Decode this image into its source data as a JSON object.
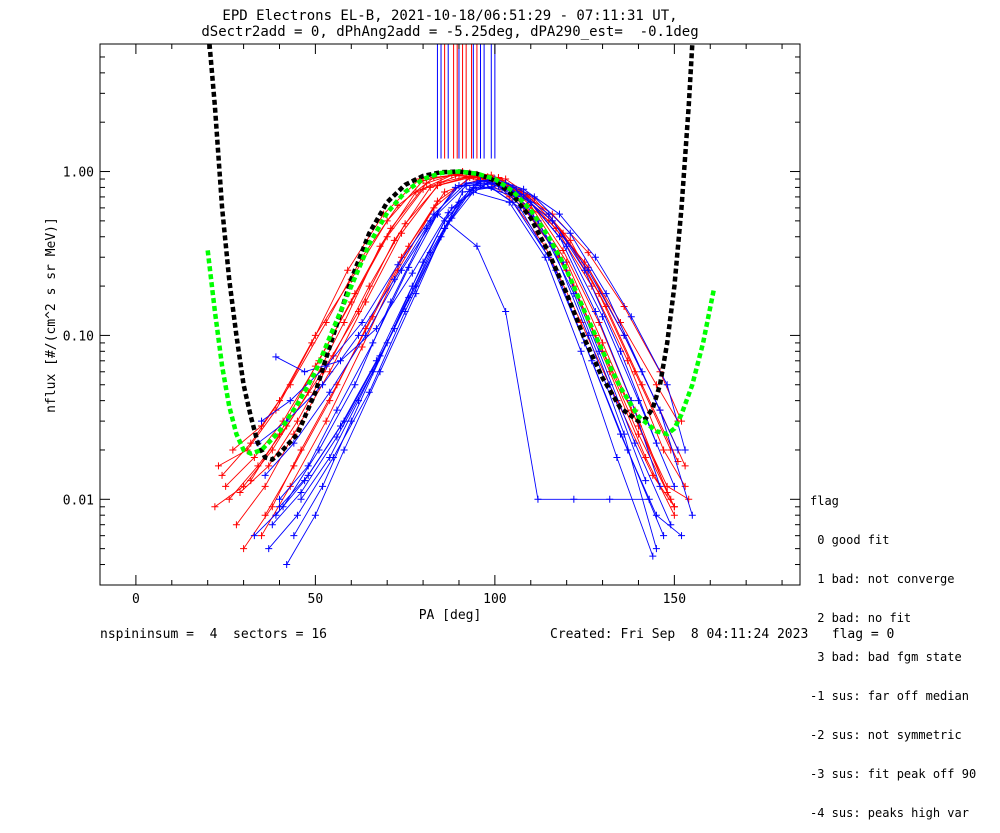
{
  "title_line1": "EPD Electrons EL-B, 2021-10-18/06:51:29 - 07:11:31 UT,",
  "title_line2": "dSectr2add = 0, dPhAng2add = -5.25deg, dPA290_est=  -0.1deg",
  "footer_left": "nspininsum =  4  sectors = 16",
  "footer_right": "Created: Fri Sep  8 04:11:24 2023   flag = 0",
  "legend": {
    "title": "flag",
    "items": [
      " 0 good fit",
      " 1 bad: not converge",
      " 2 bad: no fit",
      " 3 bad: bad fgm state",
      "-1 sus: far off median",
      "-2 sus: not symmetric",
      "-3 sus: fit peak off 90",
      "-4 sus: peaks high var"
    ]
  },
  "chart_data": {
    "type": "scatter",
    "title": "EPD Electrons EL-B, 2021-10-18/06:51:29 - 07:11:31 UT,",
    "subtitle": "dSectr2add = 0, dPhAng2add = -5.25deg, dPA290_est=  -0.1deg",
    "xlabel": "PA [deg]",
    "ylabel": "nflux [#/(cm^2 s sr MeV)]",
    "xlim": [
      -10,
      185
    ],
    "ylim": [
      0.003,
      6.0
    ],
    "yscale": "log",
    "xticks": [
      0,
      50,
      100,
      150
    ],
    "xtick_labels": [
      "0",
      "50",
      "100",
      "150"
    ],
    "yticks": [
      0.01,
      0.1,
      1.0
    ],
    "ytick_labels": [
      "0.01",
      "0.10",
      "1.00"
    ],
    "colors": {
      "red_series": "#ff0000",
      "blue_series": "#0000ff",
      "fit_black": "#000000",
      "fit_green": "#00ff00"
    },
    "series": [
      {
        "color": "#ff0000",
        "style": "line+plus",
        "x": [
          22,
          30,
          38,
          48,
          58,
          68,
          78,
          88,
          96,
          104,
          114,
          124,
          134,
          144,
          150
        ],
        "y": [
          0.009,
          0.012,
          0.02,
          0.045,
          0.12,
          0.35,
          0.75,
          0.95,
          0.92,
          0.7,
          0.35,
          0.12,
          0.04,
          0.014,
          0.009
        ]
      },
      {
        "color": "#ff0000",
        "style": "line+plus",
        "x": [
          25,
          33,
          41,
          51,
          61,
          71,
          81,
          91,
          99,
          107,
          117,
          127,
          137,
          147,
          153
        ],
        "y": [
          0.012,
          0.018,
          0.03,
          0.07,
          0.18,
          0.45,
          0.85,
          1.0,
          0.95,
          0.75,
          0.45,
          0.2,
          0.07,
          0.02,
          0.012
        ]
      },
      {
        "color": "#ff0000",
        "style": "line+plus",
        "x": [
          23,
          31,
          39,
          49,
          59,
          69,
          79,
          89,
          97,
          105,
          115,
          125,
          135,
          145,
          151
        ],
        "y": [
          0.016,
          0.02,
          0.035,
          0.09,
          0.25,
          0.55,
          0.9,
          0.95,
          0.9,
          0.72,
          0.5,
          0.28,
          0.12,
          0.05,
          0.03
        ]
      },
      {
        "color": "#ff0000",
        "style": "line+plus",
        "x": [
          26,
          34,
          42,
          52,
          62,
          72,
          82,
          92,
          100,
          108,
          118,
          128,
          138,
          148,
          154
        ],
        "y": [
          0.01,
          0.016,
          0.028,
          0.06,
          0.14,
          0.38,
          0.8,
          0.92,
          0.85,
          0.6,
          0.3,
          0.1,
          0.035,
          0.012,
          0.01
        ]
      },
      {
        "color": "#ff0000",
        "style": "line+plus",
        "x": [
          28,
          36,
          44,
          54,
          64,
          74,
          84,
          94,
          102,
          110,
          120,
          130,
          140,
          150
        ],
        "y": [
          0.007,
          0.012,
          0.025,
          0.06,
          0.16,
          0.42,
          0.82,
          0.93,
          0.85,
          0.55,
          0.25,
          0.08,
          0.025,
          0.009
        ]
      },
      {
        "color": "#ff0000",
        "style": "line+plus",
        "x": [
          24,
          32,
          40,
          50,
          60,
          70,
          80,
          90,
          98,
          106,
          116,
          126,
          136,
          146,
          152
        ],
        "y": [
          0.014,
          0.022,
          0.04,
          0.1,
          0.22,
          0.5,
          0.88,
          0.97,
          0.93,
          0.78,
          0.55,
          0.32,
          0.15,
          0.06,
          0.03
        ]
      },
      {
        "color": "#ff0000",
        "style": "line+plus",
        "x": [
          30,
          38,
          46,
          56,
          66,
          76,
          86,
          96,
          104,
          112,
          122,
          132,
          142,
          150
        ],
        "y": [
          0.005,
          0.009,
          0.02,
          0.05,
          0.13,
          0.35,
          0.75,
          0.9,
          0.8,
          0.5,
          0.2,
          0.06,
          0.018,
          0.008
        ]
      },
      {
        "color": "#ff0000",
        "style": "line+plus",
        "x": [
          27,
          35,
          43,
          53,
          63,
          73,
          83,
          93,
          101,
          109,
          119,
          129,
          139,
          149
        ],
        "y": [
          0.02,
          0.028,
          0.05,
          0.12,
          0.3,
          0.62,
          0.92,
          0.98,
          0.92,
          0.72,
          0.42,
          0.18,
          0.06,
          0.02
        ]
      },
      {
        "color": "#ff0000",
        "style": "line+plus",
        "x": [
          29,
          37,
          45,
          55,
          65,
          75,
          85,
          95,
          103,
          111,
          121,
          131,
          141,
          151
        ],
        "y": [
          0.011,
          0.016,
          0.03,
          0.075,
          0.2,
          0.48,
          0.86,
          0.96,
          0.9,
          0.68,
          0.38,
          0.15,
          0.05,
          0.017
        ]
      },
      {
        "color": "#ff0000",
        "style": "line+plus",
        "x": [
          35,
          43,
          53,
          63,
          73,
          83,
          93,
          101,
          109,
          119,
          129,
          139,
          148
        ],
        "y": [
          0.006,
          0.012,
          0.03,
          0.085,
          0.25,
          0.6,
          0.92,
          0.9,
          0.7,
          0.33,
          0.12,
          0.035,
          0.011
        ]
      },
      {
        "color": "#ff0000",
        "style": "line+plus",
        "x": [
          32,
          40,
          50,
          60,
          70,
          80,
          90,
          98,
          106,
          116,
          126,
          136,
          146,
          153
        ],
        "y": [
          0.013,
          0.025,
          0.065,
          0.16,
          0.4,
          0.78,
          0.95,
          0.92,
          0.76,
          0.5,
          0.26,
          0.1,
          0.035,
          0.016
        ]
      },
      {
        "color": "#ff0000",
        "style": "line+plus",
        "x": [
          36,
          44,
          54,
          64,
          74,
          84,
          94,
          102,
          110,
          120,
          130,
          140,
          149
        ],
        "y": [
          0.008,
          0.016,
          0.04,
          0.11,
          0.3,
          0.66,
          0.94,
          0.88,
          0.62,
          0.28,
          0.09,
          0.028,
          0.01
        ]
      },
      {
        "color": "#0000ff",
        "style": "line+plus",
        "x": [
          33,
          41,
          51,
          61,
          71,
          81,
          89,
          97,
          105,
          115,
          125,
          135,
          145,
          152
        ],
        "y": [
          0.006,
          0.009,
          0.02,
          0.05,
          0.16,
          0.45,
          0.8,
          0.85,
          0.65,
          0.3,
          0.09,
          0.025,
          0.008,
          0.006
        ]
      },
      {
        "color": "#0000ff",
        "style": "line+plus",
        "x": [
          34,
          42,
          52,
          62,
          72,
          82,
          90,
          98,
          106,
          116,
          126,
          136,
          146,
          155
        ],
        "y": [
          0.022,
          0.03,
          0.05,
          0.1,
          0.22,
          0.5,
          0.82,
          0.88,
          0.75,
          0.5,
          0.25,
          0.1,
          0.035,
          0.008
        ]
      },
      {
        "color": "#0000ff",
        "style": "line+plus",
        "x": [
          37,
          45,
          55,
          65,
          75,
          85,
          91,
          99,
          107,
          117,
          127,
          137,
          147
        ],
        "y": [
          0.005,
          0.008,
          0.018,
          0.045,
          0.14,
          0.4,
          0.75,
          0.8,
          0.6,
          0.25,
          0.07,
          0.02,
          0.006
        ]
      },
      {
        "color": "#0000ff",
        "style": "line+plus",
        "x": [
          35,
          43,
          53,
          63,
          73,
          83,
          92,
          100,
          108,
          118,
          128,
          138,
          148,
          153
        ],
        "y": [
          0.03,
          0.04,
          0.065,
          0.12,
          0.27,
          0.55,
          0.85,
          0.9,
          0.78,
          0.55,
          0.3,
          0.13,
          0.05,
          0.02
        ]
      },
      {
        "color": "#0000ff",
        "style": "line+plus",
        "x": [
          38,
          46,
          56,
          66,
          76,
          86,
          93,
          101,
          109,
          119,
          129,
          139,
          149
        ],
        "y": [
          0.007,
          0.011,
          0.024,
          0.06,
          0.17,
          0.45,
          0.78,
          0.82,
          0.62,
          0.28,
          0.08,
          0.022,
          0.007
        ]
      },
      {
        "color": "#0000ff",
        "style": "line+plus",
        "x": [
          40,
          48,
          58,
          68,
          78,
          88,
          94,
          102,
          112,
          122,
          132,
          142
        ],
        "y": [
          0.009,
          0.014,
          0.03,
          0.075,
          0.2,
          0.52,
          0.8,
          0.78,
          0.5,
          0.18,
          0.05,
          0.013
        ]
      },
      {
        "color": "#0000ff",
        "style": "line+plus",
        "x": [
          39,
          47,
          57,
          67,
          77,
          87,
          95,
          103,
          111,
          121,
          131,
          141,
          151
        ],
        "y": [
          0.074,
          0.06,
          0.07,
          0.11,
          0.24,
          0.56,
          0.85,
          0.85,
          0.7,
          0.42,
          0.18,
          0.06,
          0.02
        ]
      },
      {
        "color": "#0000ff",
        "style": "line+plus",
        "x": [
          44,
          52,
          60,
          70,
          80,
          88,
          96,
          106,
          116,
          126,
          136,
          145
        ],
        "y": [
          0.006,
          0.012,
          0.03,
          0.09,
          0.28,
          0.6,
          0.82,
          0.7,
          0.35,
          0.1,
          0.025,
          0.005
        ]
      },
      {
        "color": "#0000ff",
        "style": "line+plus",
        "x": [
          42,
          50,
          58,
          68,
          78,
          86,
          94,
          104,
          114,
          124,
          134,
          144
        ],
        "y": [
          0.004,
          0.008,
          0.02,
          0.06,
          0.18,
          0.45,
          0.75,
          0.65,
          0.3,
          0.08,
          0.018,
          0.0045
        ]
      },
      {
        "color": "#0000ff",
        "style": "line+plus",
        "x": [
          36,
          44,
          54,
          64,
          74,
          84,
          92,
          100,
          110,
          120,
          130,
          140,
          150
        ],
        "y": [
          0.014,
          0.022,
          0.045,
          0.1,
          0.25,
          0.55,
          0.82,
          0.84,
          0.65,
          0.35,
          0.13,
          0.04,
          0.012
        ]
      },
      {
        "color": "#0000ff",
        "style": "line+plus",
        "x": [
          46,
          54,
          62,
          72,
          82,
          90,
          98,
          108,
          118,
          128,
          138,
          146
        ],
        "y": [
          0.01,
          0.018,
          0.04,
          0.11,
          0.32,
          0.65,
          0.85,
          0.72,
          0.4,
          0.14,
          0.04,
          0.012
        ]
      },
      {
        "color": "#0000ff",
        "style": "line+plus",
        "x": [
          40,
          48,
          56,
          66,
          76,
          84,
          95,
          103,
          112,
          122,
          132,
          143
        ],
        "y": [
          0.01,
          0.016,
          0.035,
          0.09,
          0.26,
          0.55,
          0.35,
          0.14,
          0.01,
          0.01,
          0.01,
          0.01
        ]
      },
      {
        "color": "#0000ff",
        "style": "line+plus",
        "x": [
          39,
          47,
          57,
          67,
          77,
          86,
          96,
          105,
          115,
          125,
          135,
          145
        ],
        "y": [
          0.008,
          0.013,
          0.028,
          0.07,
          0.2,
          0.5,
          0.88,
          0.8,
          0.55,
          0.25,
          0.08,
          0.022
        ]
      }
    ],
    "peak_markers": {
      "color_red": "#ff0000",
      "color_blue": "#0000ff",
      "x_red": [
        86,
        88.5,
        89.5,
        91,
        92,
        93.5,
        95
      ],
      "x_blue": [
        84,
        85,
        87,
        90,
        94,
        96,
        97,
        99,
        100
      ],
      "y_top": 6.0,
      "y_bottom": 1.2
    },
    "fits": [
      {
        "name": "fit_black",
        "color": "#000000",
        "style": "dashed",
        "x": [
          20.5,
          22,
          24,
          26,
          28,
          30,
          32,
          34,
          36,
          38,
          40,
          45,
          50,
          55,
          60,
          65,
          70,
          75,
          80,
          85,
          90,
          95,
          100,
          105,
          110,
          115,
          120,
          125,
          130,
          135,
          140,
          142,
          144,
          146,
          148,
          150,
          152,
          154,
          155
        ],
        "y": [
          6.0,
          2.5,
          0.6,
          0.22,
          0.1,
          0.05,
          0.032,
          0.022,
          0.018,
          0.0175,
          0.019,
          0.025,
          0.045,
          0.1,
          0.22,
          0.42,
          0.65,
          0.83,
          0.94,
          0.99,
          1.0,
          0.97,
          0.88,
          0.72,
          0.52,
          0.32,
          0.18,
          0.095,
          0.055,
          0.036,
          0.03,
          0.031,
          0.036,
          0.05,
          0.09,
          0.2,
          0.6,
          2.5,
          6.0
        ]
      },
      {
        "name": "fit_green",
        "color": "#00ff00",
        "style": "dashed",
        "x": [
          20,
          22,
          24,
          26,
          28,
          30,
          32,
          35,
          40,
          45,
          50,
          55,
          60,
          65,
          70,
          75,
          80,
          85,
          90,
          95,
          100,
          105,
          110,
          115,
          120,
          125,
          130,
          135,
          140,
          145,
          148,
          150,
          152,
          155,
          158,
          161
        ],
        "y": [
          0.33,
          0.14,
          0.065,
          0.037,
          0.025,
          0.02,
          0.019,
          0.02,
          0.026,
          0.038,
          0.06,
          0.11,
          0.2,
          0.36,
          0.56,
          0.75,
          0.9,
          0.98,
          1.0,
          0.97,
          0.9,
          0.76,
          0.58,
          0.4,
          0.25,
          0.14,
          0.08,
          0.048,
          0.032,
          0.026,
          0.025,
          0.027,
          0.033,
          0.05,
          0.09,
          0.19
        ]
      }
    ]
  }
}
